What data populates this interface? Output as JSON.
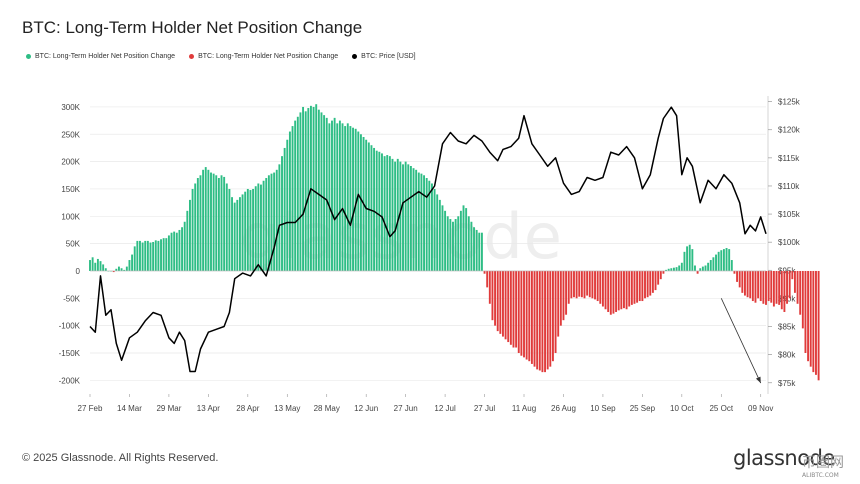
{
  "header": {
    "title": "BTC: Long-Term Holder Net Position Change"
  },
  "legend": [
    {
      "label": "BTC: Long-Term Holder Net Position Change",
      "color": "#2ebd85"
    },
    {
      "label": "BTC: Long-Term Holder Net Position Change",
      "color": "#e03b3b"
    },
    {
      "label": "BTC: Price [USD]",
      "color": "#000000"
    }
  ],
  "watermark": "glassnode",
  "footer": {
    "copyright": "© 2025 Glassnode. All Rights Reserved.",
    "brand": "glassnode",
    "site_logo": "币圈网",
    "site_domain": "ALIBTC.COM"
  },
  "chart_data": {
    "type": "bar",
    "colors": {
      "positive": "#2ebd85",
      "negative": "#e03b3b",
      "price": "#000000",
      "grid": "#e9e9e9"
    },
    "xlim": [
      "2025-02-27",
      "2025-11-11"
    ],
    "x_ticks": [
      "27 Feb",
      "14 Mar",
      "29 Mar",
      "13 Apr",
      "28 Apr",
      "13 May",
      "28 May",
      "12 Jun",
      "27 Jun",
      "12 Jul",
      "27 Jul",
      "11 Aug",
      "26 Aug",
      "10 Sep",
      "25 Sep",
      "10 Oct",
      "25 Oct",
      "09 Nov"
    ],
    "ylim_left": [
      -225000,
      320000
    ],
    "y_ticks_left": [
      "-200K",
      "-150K",
      "-100K",
      "-50K",
      "0",
      "50K",
      "100K",
      "150K",
      "200K",
      "250K",
      "300K"
    ],
    "ylim_right": [
      73000,
      126000
    ],
    "y_ticks_right": [
      "$75k",
      "$80k",
      "$85k",
      "$90k",
      "$95k",
      "$100k",
      "$105k",
      "$110k",
      "$115k",
      "$120k",
      "$125k"
    ],
    "series": [
      {
        "name": "BTC: Long-Term Holder Net Position Change",
        "axis": "left",
        "start": "2025-02-27",
        "interval": "1d",
        "values": [
          20000,
          25000,
          15000,
          22000,
          18000,
          12000,
          5000,
          0,
          0,
          -2000,
          4000,
          8000,
          5000,
          2000,
          8000,
          20000,
          30000,
          45000,
          55000,
          55000,
          52000,
          55000,
          55000,
          52000,
          53000,
          56000,
          55000,
          58000,
          60000,
          60000,
          65000,
          70000,
          72000,
          70000,
          75000,
          80000,
          90000,
          110000,
          130000,
          150000,
          160000,
          170000,
          175000,
          185000,
          190000,
          185000,
          180000,
          178000,
          175000,
          170000,
          175000,
          172000,
          160000,
          150000,
          135000,
          125000,
          130000,
          135000,
          140000,
          145000,
          150000,
          148000,
          150000,
          155000,
          160000,
          158000,
          165000,
          170000,
          175000,
          178000,
          180000,
          185000,
          195000,
          210000,
          225000,
          240000,
          255000,
          265000,
          275000,
          282000,
          290000,
          300000,
          292000,
          298000,
          302000,
          300000,
          305000,
          295000,
          290000,
          285000,
          280000,
          270000,
          275000,
          280000,
          270000,
          275000,
          270000,
          265000,
          270000,
          265000,
          262000,
          260000,
          255000,
          250000,
          245000,
          240000,
          235000,
          230000,
          225000,
          220000,
          218000,
          215000,
          210000,
          212000,
          210000,
          205000,
          200000,
          205000,
          200000,
          195000,
          200000,
          195000,
          192000,
          188000,
          185000,
          180000,
          178000,
          175000,
          170000,
          165000,
          160000,
          150000,
          140000,
          130000,
          120000,
          110000,
          100000,
          95000,
          90000,
          95000,
          100000,
          110000,
          120000,
          115000,
          100000,
          90000,
          80000,
          75000,
          70000,
          70000,
          -5000,
          -30000,
          -60000,
          -90000,
          -100000,
          -110000,
          -115000,
          -120000,
          -125000,
          -130000,
          -135000,
          -140000,
          -140000,
          -150000,
          -155000,
          -158000,
          -162000,
          -165000,
          -170000,
          -175000,
          -180000,
          -182000,
          -185000,
          -185000,
          -180000,
          -175000,
          -165000,
          -150000,
          -120000,
          -100000,
          -90000,
          -80000,
          -60000,
          -50000,
          -48000,
          -50000,
          -47000,
          -48000,
          -50000,
          -45000,
          -48000,
          -50000,
          -52000,
          -55000,
          -60000,
          -65000,
          -70000,
          -75000,
          -80000,
          -78000,
          -75000,
          -72000,
          -70000,
          -68000,
          -70000,
          -65000,
          -62000,
          -60000,
          -58000,
          -55000,
          -55000,
          -50000,
          -48000,
          -45000,
          -40000,
          -35000,
          -25000,
          -15000,
          -5000,
          2000,
          4000,
          5000,
          6000,
          7000,
          10000,
          15000,
          35000,
          45000,
          48000,
          40000,
          10000,
          -5000,
          5000,
          8000,
          10000,
          15000,
          20000,
          25000,
          30000,
          35000,
          38000,
          40000,
          42000,
          40000,
          20000,
          -5000,
          -20000,
          -30000,
          -40000,
          -45000,
          -48000,
          -50000,
          -55000,
          -58000,
          -50000,
          -55000,
          -60000,
          -62000,
          -55000,
          -58000,
          -65000,
          -60000,
          -62000,
          -70000,
          -75000,
          -60000,
          -50000,
          -15000,
          -40000,
          -60000,
          -80000,
          -105000,
          -150000,
          -165000,
          -175000,
          -185000,
          -190000,
          -200000
        ]
      },
      {
        "name": "BTC: Price [USD]",
        "axis": "right",
        "type": "line",
        "x": [
          "2025-02-27",
          "2025-03-01",
          "2025-03-03",
          "2025-03-05",
          "2025-03-07",
          "2025-03-09",
          "2025-03-11",
          "2025-03-14",
          "2025-03-17",
          "2025-03-20",
          "2025-03-23",
          "2025-03-26",
          "2025-03-29",
          "2025-03-31",
          "2025-04-02",
          "2025-04-04",
          "2025-04-06",
          "2025-04-08",
          "2025-04-10",
          "2025-04-13",
          "2025-04-16",
          "2025-04-19",
          "2025-04-21",
          "2025-04-23",
          "2025-04-26",
          "2025-04-29",
          "2025-05-02",
          "2025-05-05",
          "2025-05-08",
          "2025-05-10",
          "2025-05-13",
          "2025-05-16",
          "2025-05-19",
          "2025-05-22",
          "2025-05-25",
          "2025-05-28",
          "2025-05-31",
          "2025-06-03",
          "2025-06-06",
          "2025-06-09",
          "2025-06-12",
          "2025-06-15",
          "2025-06-18",
          "2025-06-21",
          "2025-06-23",
          "2025-06-26",
          "2025-06-29",
          "2025-07-02",
          "2025-07-05",
          "2025-07-08",
          "2025-07-11",
          "2025-07-14",
          "2025-07-17",
          "2025-07-20",
          "2025-07-23",
          "2025-07-26",
          "2025-07-29",
          "2025-08-01",
          "2025-08-03",
          "2025-08-06",
          "2025-08-09",
          "2025-08-11",
          "2025-08-14",
          "2025-08-17",
          "2025-08-20",
          "2025-08-23",
          "2025-08-26",
          "2025-08-29",
          "2025-09-01",
          "2025-09-04",
          "2025-09-07",
          "2025-09-10",
          "2025-09-13",
          "2025-09-16",
          "2025-09-19",
          "2025-09-22",
          "2025-09-25",
          "2025-09-28",
          "2025-10-01",
          "2025-10-03",
          "2025-10-06",
          "2025-10-08",
          "2025-10-10",
          "2025-10-12",
          "2025-10-14",
          "2025-10-17",
          "2025-10-20",
          "2025-10-23",
          "2025-10-26",
          "2025-10-29",
          "2025-11-01",
          "2025-11-03",
          "2025-11-05",
          "2025-11-07",
          "2025-11-09",
          "2025-11-11"
        ],
        "values": [
          85000,
          84000,
          94000,
          87000,
          88000,
          82000,
          79000,
          83000,
          84000,
          86000,
          87500,
          87000,
          83000,
          82000,
          84000,
          82500,
          77000,
          77000,
          81000,
          84000,
          84500,
          85000,
          87500,
          93500,
          94500,
          94000,
          96000,
          94000,
          99000,
          103000,
          103500,
          103500,
          105000,
          109500,
          108500,
          107500,
          104000,
          106000,
          103000,
          108500,
          106000,
          105500,
          104500,
          101000,
          102000,
          107000,
          108000,
          109000,
          108000,
          110000,
          117500,
          119500,
          118000,
          117500,
          119000,
          118000,
          116000,
          114500,
          116500,
          117000,
          118500,
          122500,
          117500,
          115500,
          113500,
          115000,
          110500,
          108500,
          109000,
          111500,
          111000,
          111500,
          116000,
          115500,
          117000,
          115000,
          109500,
          112000,
          118500,
          122000,
          124000,
          122500,
          112000,
          115000,
          113500,
          107000,
          111000,
          109500,
          112000,
          110500,
          107000,
          101500,
          103000,
          102000,
          104500,
          101500
        ]
      }
    ],
    "annotations": [
      {
        "type": "arrow",
        "from": [
          "2025-10-25",
          -50000
        ],
        "to": [
          "2025-11-09",
          -205000
        ]
      }
    ],
    "grid": true,
    "legend_position": "top-left"
  }
}
